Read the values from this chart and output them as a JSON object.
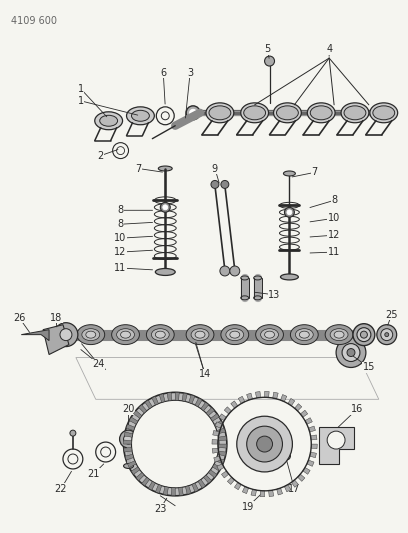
{
  "bg_color": "#f5f5f0",
  "fig_width": 4.08,
  "fig_height": 5.33,
  "dpi": 100,
  "header": "4109 600",
  "lc": "#2a2a2a",
  "gray": "#888888",
  "lgray": "#aaaaaa",
  "mgray": "#666666"
}
